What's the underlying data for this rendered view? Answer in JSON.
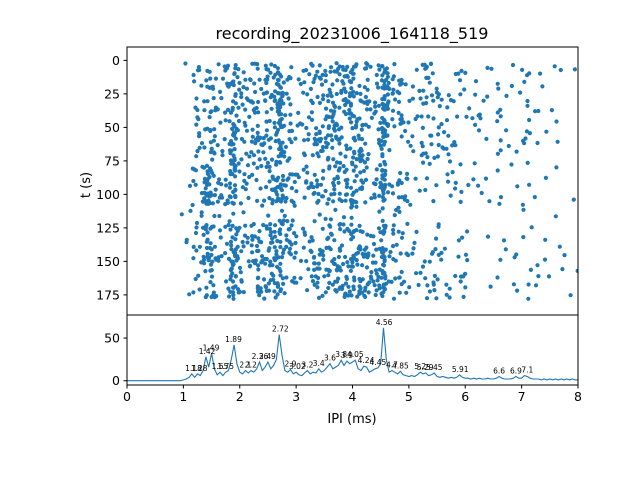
{
  "figure": {
    "title": "recording_20231006_164118_519"
  },
  "chart_data": {
    "type": "scatter",
    "title": "recording_20231006_164118_519",
    "xlabel": "IPI (ms)",
    "xlim": [
      0,
      8
    ],
    "xticks": [
      0,
      1,
      2,
      3,
      4,
      5,
      6,
      7,
      8
    ],
    "scatter": {
      "ylabel": "t (s)",
      "yticks": [
        0,
        25,
        50,
        75,
        100,
        125,
        150,
        175
      ],
      "y_axis_inverted": true,
      "t_range": [
        0,
        178
      ],
      "t_sparse_band": [
        107,
        122
      ],
      "t_sparse_keep": 0.25,
      "marker_color": "#1f77b4",
      "n_points": 1700,
      "seed": 20231006
    },
    "histogram": {
      "ylim": [
        -5,
        77
      ],
      "yticks": [
        0,
        50
      ],
      "line_color": "#1f77b4",
      "bin_width": 0.05,
      "x_start": 0,
      "values": [
        0,
        0,
        0,
        0,
        0,
        0,
        0,
        0,
        0,
        0,
        0,
        0,
        0,
        0,
        0,
        0,
        0,
        0,
        0,
        0,
        1,
        2,
        4,
        8,
        4,
        8,
        6,
        12,
        28,
        16,
        32,
        14,
        7,
        10,
        6,
        10,
        12,
        25,
        42,
        20,
        10,
        8,
        12,
        9,
        12,
        10,
        14,
        22,
        12,
        16,
        22,
        14,
        18,
        25,
        54,
        30,
        12,
        10,
        13,
        8,
        10,
        7,
        6,
        9,
        12,
        8,
        10,
        9,
        14,
        10,
        12,
        16,
        20,
        14,
        16,
        18,
        24,
        18,
        23,
        20,
        22,
        24,
        14,
        12,
        17,
        16,
        10,
        12,
        14,
        15,
        20,
        62,
        25,
        10,
        12,
        10,
        8,
        11,
        7,
        6,
        5,
        6,
        5,
        7,
        10,
        8,
        9,
        6,
        7,
        9,
        5,
        4,
        5,
        4,
        3,
        4,
        3,
        4,
        7,
        4,
        3,
        3,
        2,
        3,
        2,
        3,
        2,
        2,
        3,
        2,
        2,
        3,
        5,
        3,
        2,
        2,
        2,
        3,
        5,
        3,
        3,
        6,
        5,
        3,
        2,
        2,
        2,
        1,
        2,
        1,
        2,
        1,
        2,
        1,
        2,
        1,
        2,
        1,
        2,
        1,
        1
      ]
    },
    "annotations": [
      {
        "x": 1.18,
        "y": 8,
        "label": "1.18"
      },
      {
        "x": 1.28,
        "y": 8,
        "label": "1.28"
      },
      {
        "x": 1.42,
        "y": 28,
        "label": "1.42"
      },
      {
        "x": 1.49,
        "y": 32,
        "label": "1.49"
      },
      {
        "x": 1.65,
        "y": 10,
        "label": "1.65"
      },
      {
        "x": 1.75,
        "y": 10,
        "label": "1.75"
      },
      {
        "x": 1.89,
        "y": 42,
        "label": "1.89"
      },
      {
        "x": 2.1,
        "y": 12,
        "label": "2.1"
      },
      {
        "x": 2.2,
        "y": 12,
        "label": "2.2"
      },
      {
        "x": 2.36,
        "y": 22,
        "label": "2.36"
      },
      {
        "x": 2.49,
        "y": 22,
        "label": "2.49"
      },
      {
        "x": 2.72,
        "y": 54,
        "label": "2.72"
      },
      {
        "x": 2.9,
        "y": 13,
        "label": "2.9"
      },
      {
        "x": 3.02,
        "y": 10,
        "label": "3.02"
      },
      {
        "x": 3.2,
        "y": 12,
        "label": "3.2"
      },
      {
        "x": 3.4,
        "y": 14,
        "label": "3.4"
      },
      {
        "x": 3.6,
        "y": 20,
        "label": "3.6"
      },
      {
        "x": 3.8,
        "y": 24,
        "label": "3.8"
      },
      {
        "x": 3.9,
        "y": 23,
        "label": "3.9"
      },
      {
        "x": 4.05,
        "y": 24,
        "label": "4.05"
      },
      {
        "x": 4.24,
        "y": 17,
        "label": "4.24"
      },
      {
        "x": 4.45,
        "y": 15,
        "label": "4.45"
      },
      {
        "x": 4.56,
        "y": 62,
        "label": "4.56"
      },
      {
        "x": 4.7,
        "y": 12,
        "label": "4.7"
      },
      {
        "x": 4.85,
        "y": 11,
        "label": "4.85"
      },
      {
        "x": 5.2,
        "y": 10,
        "label": "5.2"
      },
      {
        "x": 5.29,
        "y": 9,
        "label": "5.29"
      },
      {
        "x": 5.45,
        "y": 9,
        "label": "5.45"
      },
      {
        "x": 5.91,
        "y": 7,
        "label": "5.91"
      },
      {
        "x": 6.6,
        "y": 5,
        "label": "6.6"
      },
      {
        "x": 6.9,
        "y": 5,
        "label": "6.9"
      },
      {
        "x": 7.1,
        "y": 6,
        "label": "7.1"
      }
    ]
  }
}
